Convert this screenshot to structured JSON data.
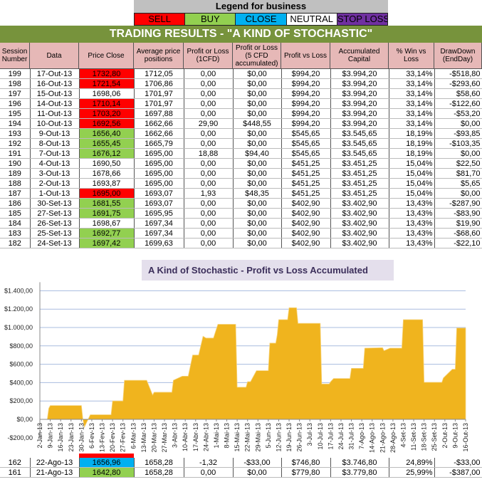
{
  "legend": {
    "title": "Legend for business",
    "items": [
      {
        "label": "SELL",
        "color": "#ff0000",
        "text_color": "#000000"
      },
      {
        "label": "BUY",
        "color": "#92d050",
        "text_color": "#000000"
      },
      {
        "label": "CLOSE",
        "color": "#00b0f0",
        "text_color": "#000000"
      },
      {
        "label": "NEUTRAL",
        "color": "#ffffff",
        "text_color": "#000000"
      },
      {
        "label": "STOP LOSS",
        "color": "#7030a0",
        "text_color": "#000000"
      }
    ]
  },
  "title": "TRADING RESULTS - \"A KIND OF STOCHASTIC\"",
  "columns": [
    "Session Number",
    "Data",
    "Price Close",
    "Average price positions",
    "Profit or Loss (1CFD)",
    "Profit or Loss (5 CFD accumulated)",
    "Profit vs Loss",
    "Accumulated Capital",
    "% Win vs Loss",
    "DrawDown (EndDay)"
  ],
  "price_colors": {
    "sell": "#ff0000",
    "buy": "#92d050",
    "close": "#00b0f0",
    "neutral": "#ffffff"
  },
  "rows": [
    [
      "199",
      "17-Out-13",
      "1732,80",
      "sell",
      "1712,05",
      "0,00",
      "$0,00",
      "$994,20",
      "$3.994,20",
      "33,14%",
      "-$518,80"
    ],
    [
      "198",
      "16-Out-13",
      "1721,54",
      "sell",
      "1706,86",
      "0,00",
      "$0,00",
      "$994,20",
      "$3.994,20",
      "33,14%",
      "-$293,60"
    ],
    [
      "197",
      "15-Out-13",
      "1698,06",
      "neutral",
      "1701,97",
      "0,00",
      "$0,00",
      "$994,20",
      "$3.994,20",
      "33,14%",
      "$58,60"
    ],
    [
      "196",
      "14-Out-13",
      "1710,14",
      "sell",
      "1701,97",
      "0,00",
      "$0,00",
      "$994,20",
      "$3.994,20",
      "33,14%",
      "-$122,60"
    ],
    [
      "195",
      "11-Out-13",
      "1703,20",
      "sell",
      "1697,88",
      "0,00",
      "$0,00",
      "$994,20",
      "$3.994,20",
      "33,14%",
      "-$53,20"
    ],
    [
      "194",
      "10-Out-13",
      "1692,56",
      "sell",
      "1662,66",
      "29,90",
      "$448,55",
      "$994,20",
      "$3.994,20",
      "33,14%",
      "$0,00"
    ],
    [
      "193",
      "9-Out-13",
      "1656,40",
      "buy",
      "1662,66",
      "0,00",
      "$0,00",
      "$545,65",
      "$3.545,65",
      "18,19%",
      "-$93,85"
    ],
    [
      "192",
      "8-Out-13",
      "1655,45",
      "buy",
      "1665,79",
      "0,00",
      "$0,00",
      "$545,65",
      "$3.545,65",
      "18,19%",
      "-$103,35"
    ],
    [
      "191",
      "7-Out-13",
      "1676,12",
      "buy",
      "1695,00",
      "18,88",
      "$94,40",
      "$545,65",
      "$3.545,65",
      "18,19%",
      "$0,00"
    ],
    [
      "190",
      "4-Out-13",
      "1690,50",
      "neutral",
      "1695,00",
      "0,00",
      "$0,00",
      "$451,25",
      "$3.451,25",
      "15,04%",
      "$22,50"
    ],
    [
      "189",
      "3-Out-13",
      "1678,66",
      "neutral",
      "1695,00",
      "0,00",
      "$0,00",
      "$451,25",
      "$3.451,25",
      "15,04%",
      "$81,70"
    ],
    [
      "188",
      "2-Out-13",
      "1693,87",
      "neutral",
      "1695,00",
      "0,00",
      "$0,00",
      "$451,25",
      "$3.451,25",
      "15,04%",
      "$5,65"
    ],
    [
      "187",
      "1-Out-13",
      "1695,00",
      "sell",
      "1693,07",
      "1,93",
      "$48,35",
      "$451,25",
      "$3.451,25",
      "15,04%",
      "$0,00"
    ],
    [
      "186",
      "30-Set-13",
      "1681,55",
      "buy",
      "1693,07",
      "0,00",
      "$0,00",
      "$402,90",
      "$3.402,90",
      "13,43%",
      "-$287,90"
    ],
    [
      "185",
      "27-Set-13",
      "1691,75",
      "buy",
      "1695,95",
      "0,00",
      "$0,00",
      "$402,90",
      "$3.402,90",
      "13,43%",
      "-$83,90"
    ],
    [
      "184",
      "26-Set-13",
      "1698,67",
      "neutral",
      "1697,34",
      "0,00",
      "$0,00",
      "$402,90",
      "$3.402,90",
      "13,43%",
      "$19,90"
    ],
    [
      "183",
      "25-Set-13",
      "1692,77",
      "buy",
      "1697,34",
      "0,00",
      "$0,00",
      "$402,90",
      "$3.402,90",
      "13,43%",
      "-$68,60"
    ],
    [
      "182",
      "24-Set-13",
      "1697,42",
      "buy",
      "1699,63",
      "0,00",
      "$0,00",
      "$402,90",
      "$3.402,90",
      "13,43%",
      "-$22,10"
    ]
  ],
  "bottom_rows": [
    [
      "162",
      "22-Ago-13",
      "1656,96",
      "close",
      "1658,28",
      "-1,32",
      "-$33,00",
      "$746,80",
      "$3.746,80",
      "24,89%",
      "-$33,00"
    ],
    [
      "161",
      "21-Ago-13",
      "1642,80",
      "buy",
      "1658,28",
      "0,00",
      "$0,00",
      "$779,80",
      "$3.779,80",
      "25,99%",
      "-$387,00"
    ]
  ],
  "chart_data": {
    "type": "area",
    "title": "A Kind of Stochastic - Profit vs Loss Accumulated",
    "color": "#f0b41e",
    "grid": true,
    "ylim": [
      -200,
      1400
    ],
    "yticks": [
      -200,
      0,
      200,
      400,
      600,
      800,
      1000,
      1200,
      1400
    ],
    "ytick_labels": [
      "-$200,00",
      "$0,00",
      "$200,00",
      "$400,00",
      "$600,00",
      "$800,00",
      "$1.000,00",
      "$1.200,00",
      "$1.400,00"
    ],
    "xtick_labels": [
      "2-Jan-13",
      "9-Jan-13",
      "16-Jan-13",
      "23-Jan-13",
      "30-Jan-13",
      "6-Fev-13",
      "13-Fev-13",
      "20-Fev-13",
      "27-Fev-13",
      "6-Mar-13",
      "13-Mar-13",
      "20-Mar-13",
      "27-Mar-13",
      "3-Abr-13",
      "10-Abr-13",
      "17-Abr-13",
      "24-Abr-13",
      "1-Mai-13",
      "8-Mai-13",
      "15-Mai-13",
      "22-Mai-13",
      "29-Mai-13",
      "5-Jun-13",
      "12-Jun-13",
      "19-Jun-13",
      "26-Jun-13",
      "3-Jul-13",
      "10-Jul-13",
      "17-Jul-13",
      "24-Jul-13",
      "31-Jul-13",
      "7-Ago-13",
      "14-Ago-13",
      "21-Ago-13",
      "28-Ago-13",
      "4-Set-13",
      "11-Set-13",
      "18-Set-13",
      "25-Set-13",
      "2-Out-13",
      "9-Out-13",
      "16-Out-13"
    ],
    "xlim": [
      "2013-01-02",
      "2013-10-16"
    ],
    "points": [
      [
        "2013-01-02",
        0
      ],
      [
        "2013-01-07",
        0
      ],
      [
        "2013-01-08",
        120
      ],
      [
        "2013-01-09",
        150
      ],
      [
        "2013-01-30",
        150
      ],
      [
        "2013-01-31",
        0
      ],
      [
        "2013-02-01",
        -85
      ],
      [
        "2013-02-05",
        50
      ],
      [
        "2013-02-19",
        50
      ],
      [
        "2013-02-20",
        200
      ],
      [
        "2013-02-27",
        200
      ],
      [
        "2013-02-28",
        425
      ],
      [
        "2013-03-15",
        425
      ],
      [
        "2013-03-19",
        265
      ],
      [
        "2013-03-20",
        295
      ],
      [
        "2013-04-01",
        295
      ],
      [
        "2013-04-02",
        425
      ],
      [
        "2013-04-08",
        470
      ],
      [
        "2013-04-12",
        470
      ],
      [
        "2013-04-15",
        700
      ],
      [
        "2013-04-19",
        700
      ],
      [
        "2013-04-22",
        905
      ],
      [
        "2013-04-24",
        885
      ],
      [
        "2013-04-29",
        885
      ],
      [
        "2013-05-02",
        1035
      ],
      [
        "2013-05-14",
        1035
      ],
      [
        "2013-05-15",
        350
      ],
      [
        "2013-05-21",
        350
      ],
      [
        "2013-05-22",
        410
      ],
      [
        "2013-05-24",
        410
      ],
      [
        "2013-05-28",
        530
      ],
      [
        "2013-06-05",
        530
      ],
      [
        "2013-06-06",
        830
      ],
      [
        "2013-06-10",
        830
      ],
      [
        "2013-06-11",
        920
      ],
      [
        "2013-06-12",
        1085
      ],
      [
        "2013-06-18",
        1085
      ],
      [
        "2013-06-19",
        1215
      ],
      [
        "2013-06-24",
        1215
      ],
      [
        "2013-06-25",
        1045
      ],
      [
        "2013-07-10",
        1045
      ],
      [
        "2013-07-11",
        385
      ],
      [
        "2013-07-16",
        385
      ],
      [
        "2013-07-17",
        410
      ],
      [
        "2013-07-19",
        445
      ],
      [
        "2013-07-30",
        445
      ],
      [
        "2013-07-31",
        555
      ],
      [
        "2013-08-08",
        555
      ],
      [
        "2013-08-09",
        775
      ],
      [
        "2013-08-21",
        779.8
      ],
      [
        "2013-08-22",
        746.8
      ],
      [
        "2013-08-26",
        775
      ],
      [
        "2013-09-03",
        775
      ],
      [
        "2013-09-04",
        1085
      ],
      [
        "2013-09-17",
        1085
      ],
      [
        "2013-09-18",
        402.9
      ],
      [
        "2013-09-30",
        402.9
      ],
      [
        "2013-10-01",
        451.25
      ],
      [
        "2013-10-07",
        545.65
      ],
      [
        "2013-10-09",
        545.65
      ],
      [
        "2013-10-10",
        994.2
      ],
      [
        "2013-10-17",
        994.2
      ]
    ]
  }
}
